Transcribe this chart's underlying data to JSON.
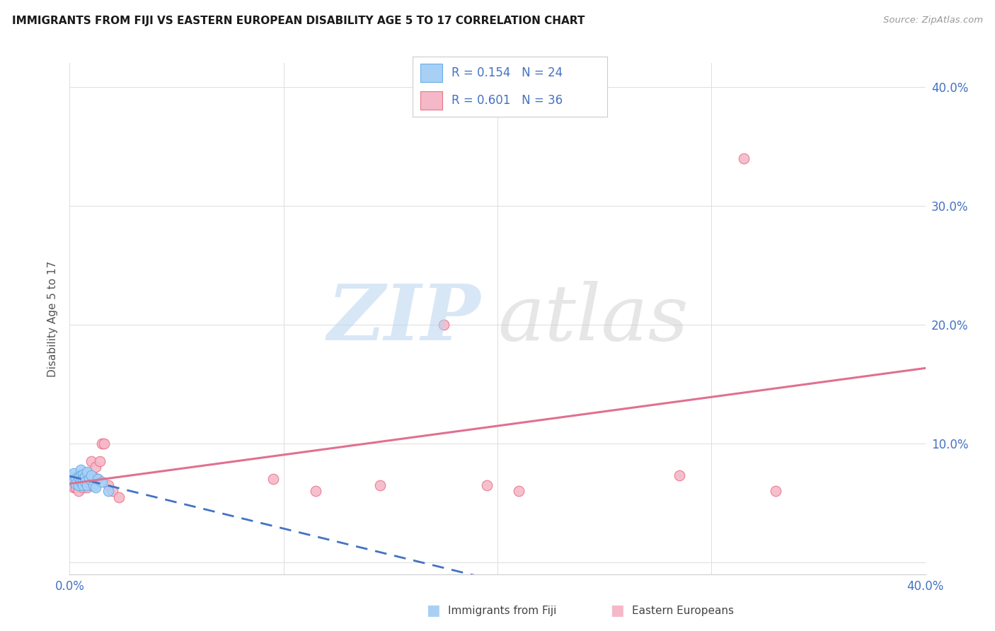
{
  "title": "IMMIGRANTS FROM FIJI VS EASTERN EUROPEAN DISABILITY AGE 5 TO 17 CORRELATION CHART",
  "source": "Source: ZipAtlas.com",
  "ylabel": "Disability Age 5 to 17",
  "xlim": [
    0.0,
    0.4
  ],
  "ylim": [
    -0.01,
    0.42
  ],
  "ytick_vals": [
    0.0,
    0.1,
    0.2,
    0.3,
    0.4
  ],
  "ytick_labels": [
    "",
    "10.0%",
    "20.0%",
    "30.0%",
    "40.0%"
  ],
  "xtick_vals": [
    0.0,
    0.1,
    0.2,
    0.3,
    0.4
  ],
  "xtick_labels": [
    "0.0%",
    "",
    "",
    "",
    "40.0%"
  ],
  "fiji_color": "#a8d0f5",
  "fiji_edge_color": "#6aaee8",
  "eastern_color": "#f5b8c8",
  "eastern_edge_color": "#e8748a",
  "fiji_R": 0.154,
  "fiji_N": 24,
  "eastern_R": 0.601,
  "eastern_N": 36,
  "fiji_line_color": "#4472c4",
  "eastern_line_color": "#e07090",
  "legend_text_color": "#4472c4",
  "fiji_x": [
    0.001,
    0.002,
    0.002,
    0.003,
    0.003,
    0.004,
    0.004,
    0.005,
    0.005,
    0.005,
    0.006,
    0.006,
    0.006,
    0.007,
    0.007,
    0.008,
    0.008,
    0.009,
    0.01,
    0.011,
    0.012,
    0.013,
    0.015,
    0.018
  ],
  "fiji_y": [
    0.072,
    0.075,
    0.068,
    0.07,
    0.066,
    0.072,
    0.065,
    0.078,
    0.073,
    0.068,
    0.074,
    0.07,
    0.065,
    0.072,
    0.068,
    0.076,
    0.065,
    0.07,
    0.073,
    0.065,
    0.063,
    0.07,
    0.068,
    0.06
  ],
  "eastern_x": [
    0.001,
    0.002,
    0.002,
    0.003,
    0.003,
    0.004,
    0.004,
    0.005,
    0.005,
    0.006,
    0.006,
    0.007,
    0.007,
    0.008,
    0.008,
    0.009,
    0.01,
    0.01,
    0.011,
    0.012,
    0.013,
    0.014,
    0.015,
    0.016,
    0.018,
    0.02,
    0.023,
    0.095,
    0.115,
    0.145,
    0.175,
    0.195,
    0.21,
    0.285,
    0.315,
    0.33
  ],
  "eastern_y": [
    0.068,
    0.065,
    0.063,
    0.067,
    0.063,
    0.065,
    0.06,
    0.072,
    0.065,
    0.07,
    0.063,
    0.073,
    0.065,
    0.075,
    0.063,
    0.068,
    0.085,
    0.065,
    0.072,
    0.08,
    0.07,
    0.085,
    0.1,
    0.1,
    0.065,
    0.06,
    0.055,
    0.07,
    0.06,
    0.065,
    0.2,
    0.065,
    0.06,
    0.073,
    0.34,
    0.06
  ],
  "background_color": "#ffffff",
  "grid_color": "#dddddd",
  "right_tick_color": "#4472c4"
}
